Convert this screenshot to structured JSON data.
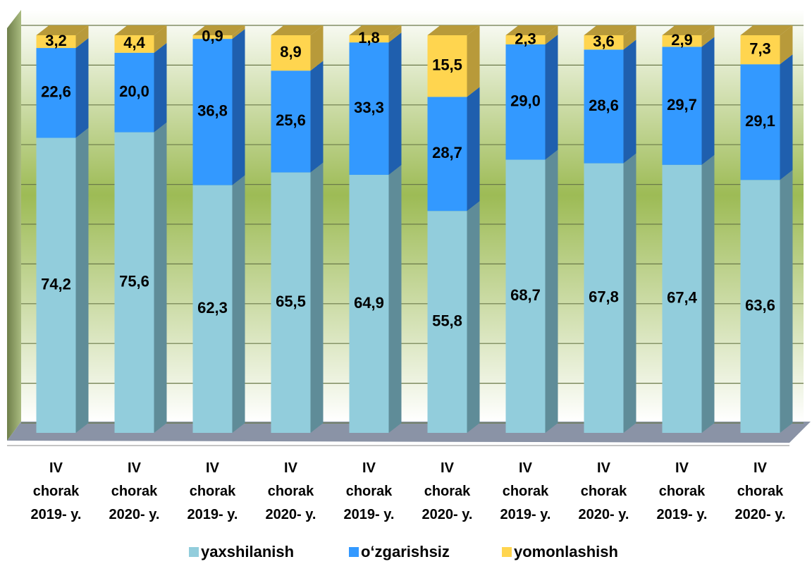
{
  "chart_data": {
    "type": "stacked_bar_3d",
    "categories": [
      "IV\nchorak\n2019- y.",
      "IV\nchorak\n2020- y.",
      "IV\nchorak\n2019- y.",
      "IV\nchorak\n2020- y.",
      "IV\nchorak\n2019- y.",
      "IV\nchorak\n2020- y.",
      "IV\nchorak\n2019- y.",
      "IV\nchorak\n2020- y.",
      "IV\nchorak\n2019- y.",
      "IV\nchorak\n2020- y."
    ],
    "series": [
      {
        "name": "yaxshilanish",
        "color": "#92cddc",
        "side": "#5f8c98",
        "values": [
          74.2,
          75.6,
          62.3,
          65.5,
          64.9,
          55.8,
          68.7,
          67.8,
          67.4,
          63.6
        ],
        "value_labels": [
          "74,2",
          "75,6",
          "62,3",
          "65,5",
          "64,9",
          "55,8",
          "68,7",
          "67,8",
          "67,4",
          "63,6"
        ]
      },
      {
        "name": "o‘zgarishsiz",
        "color": "#3399ff",
        "side": "#1f5fae",
        "values": [
          22.6,
          20.0,
          36.8,
          25.6,
          33.3,
          28.7,
          29.0,
          28.6,
          29.7,
          29.1
        ],
        "value_labels": [
          "22,6",
          "20,0",
          "36,8",
          "25,6",
          "33,3",
          "28,7",
          "29,0",
          "28,6",
          "29,7",
          "29,1"
        ]
      },
      {
        "name": "yomonlashish",
        "color": "#ffd54f",
        "side": "#b89a3a",
        "values": [
          3.2,
          4.4,
          0.9,
          8.9,
          1.8,
          15.5,
          2.3,
          3.6,
          2.9,
          7.3
        ],
        "value_labels": [
          "3,2",
          "4,4",
          "0,9",
          "8,9",
          "1,8",
          "15,5",
          "2,3",
          "3,6",
          "2,9",
          "7,3"
        ]
      }
    ],
    "ylim": [
      0,
      100
    ],
    "yticks": [
      0,
      10,
      20,
      30,
      40,
      50,
      60,
      70,
      80,
      90,
      100
    ],
    "grid": true,
    "legend": "bottom"
  }
}
